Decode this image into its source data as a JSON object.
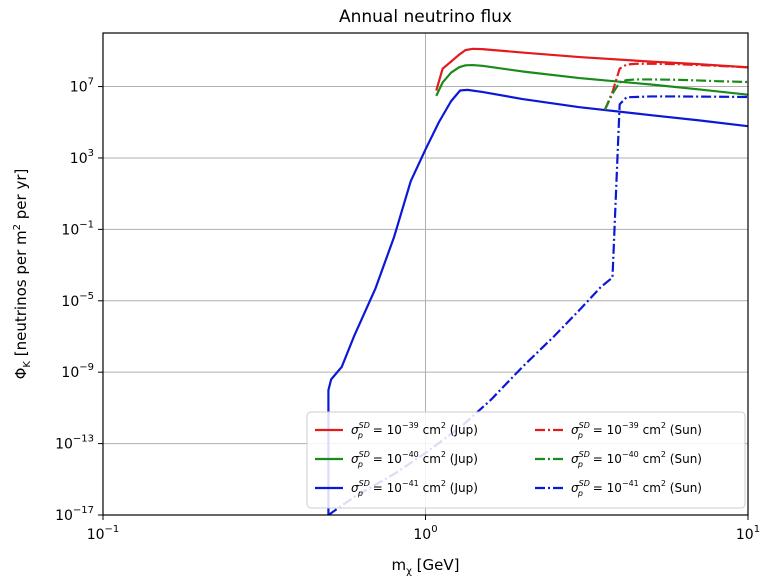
{
  "chart_data": {
    "type": "line",
    "title": "Annual neutrino flux",
    "xlabel": "m_χ [GeV]",
    "ylabel": "Φ_K [neutrinos per m² per yr]",
    "xscale": "log",
    "yscale": "log",
    "xlim": [
      0.1,
      10
    ],
    "ylim": [
      1e-17,
      10000000000.0
    ],
    "grid": true,
    "legend_position": "lower-right",
    "x_ticks": [
      {
        "base": "10",
        "exp": "−1"
      },
      {
        "base": "10",
        "exp": "0"
      },
      {
        "base": "10",
        "exp": "1"
      }
    ],
    "y_ticks": [
      {
        "base": "10",
        "exp": "7"
      },
      {
        "base": "10",
        "exp": "3"
      },
      {
        "base": "10",
        "exp": "−1"
      },
      {
        "base": "10",
        "exp": "−5"
      },
      {
        "base": "10",
        "exp": "−9"
      },
      {
        "base": "10",
        "exp": "−13"
      },
      {
        "base": "10",
        "exp": "−17"
      }
    ],
    "series": [
      {
        "name": "σ_p^SD = 10^−39 cm² (Jup)",
        "color": "#e41a1c",
        "dash": "solid",
        "x": [
          1.08,
          1.13,
          1.2,
          1.27,
          1.33,
          1.4,
          1.5,
          2,
          3,
          5,
          7,
          10
        ],
        "y": [
          6000000.0,
          100000000.0,
          250000000.0,
          600000000.0,
          1100000000.0,
          1300000000.0,
          1250000000.0,
          800000000.0,
          450000000.0,
          250000000.0,
          180000000.0,
          120000000.0
        ]
      },
      {
        "name": "σ_p^SD = 10^−40 cm² (Jup)",
        "color": "#1a8a1a",
        "dash": "solid",
        "x": [
          1.08,
          1.13,
          1.2,
          1.27,
          1.33,
          1.4,
          1.5,
          2,
          3,
          5,
          7,
          10
        ],
        "y": [
          3000000.0,
          17000000.0,
          60000000.0,
          120000000.0,
          155000000.0,
          160000000.0,
          145000000.0,
          70000000.0,
          30000000.0,
          13000000.0,
          7000000.0,
          3500000.0
        ]
      },
      {
        "name": "σ_p^SD = 10^−41 cm² (Jup)",
        "color": "#0b18d8",
        "dash": "solid",
        "x": [
          0.5,
          0.5,
          0.505,
          0.51,
          0.52,
          0.55,
          0.6,
          0.7,
          0.8,
          0.9,
          1.0,
          1.1,
          1.2,
          1.28,
          1.35,
          1.5,
          2,
          3,
          5,
          7,
          10
        ],
        "y": [
          1e-17,
          1e-10,
          2e-10,
          4e-10,
          6e-10,
          2e-09,
          1e-07,
          5e-05,
          0.04,
          50.0,
          3000.0,
          100000.0,
          1500000.0,
          6000000.0,
          6500000.0,
          5000000.0,
          2000000.0,
          700000.0,
          250000.0,
          130000.0,
          60000.0
        ]
      },
      {
        "name": "σ_p^SD = 10^−39 cm² (Sun)",
        "color": "#e41a1c",
        "dash": "dashdot",
        "x": [
          3.6,
          3.8,
          4.0,
          4.2,
          4.5,
          5,
          6,
          7,
          8,
          10
        ],
        "y": [
          500000.0,
          5000000.0,
          100000000.0,
          170000000.0,
          190000000.0,
          190000000.0,
          180000000.0,
          160000000.0,
          145000000.0,
          120000000.0
        ]
      },
      {
        "name": "σ_p^SD = 10^−40 cm² (Sun)",
        "color": "#1a8a1a",
        "dash": "dashdot",
        "x": [
          3.6,
          3.8,
          4.0,
          4.2,
          4.5,
          5,
          6,
          7,
          8,
          10
        ],
        "y": [
          500000.0,
          4000000.0,
          17000000.0,
          23000000.0,
          25000000.0,
          25000000.0,
          24000000.0,
          22000000.0,
          20000000.0,
          18000000.0
        ]
      },
      {
        "name": "σ_p^SD = 10^−41 cm² (Sun)",
        "color": "#0b18d8",
        "dash": "dashdot",
        "x": [
          0.5,
          0.6,
          0.8,
          1.0,
          1.3,
          1.6,
          2.0,
          2.5,
          3.0,
          3.5,
          3.8,
          4.0,
          4.2,
          5,
          6,
          8,
          10
        ],
        "y": [
          1e-17,
          1e-16,
          2e-15,
          3e-14,
          1e-12,
          3e-11,
          2e-09,
          1e-07,
          3e-06,
          6e-05,
          0.0002,
          1000000.0,
          2500000.0,
          2800000.0,
          2800000.0,
          2700000.0,
          2600000.0
        ]
      }
    ],
    "legend": [
      {
        "symbol": "σ",
        "sub": "p",
        "sup": "SD",
        "mid": " = 10",
        "exp": "−39",
        "unit": " cm",
        "unit_exp": "2",
        "tail": " (Jup)"
      },
      {
        "symbol": "σ",
        "sub": "p",
        "sup": "SD",
        "mid": " = 10",
        "exp": "−39",
        "unit": " cm",
        "unit_exp": "2",
        "tail": " (Sun)"
      },
      {
        "symbol": "σ",
        "sub": "p",
        "sup": "SD",
        "mid": " = 10",
        "exp": "−40",
        "unit": " cm",
        "unit_exp": "2",
        "tail": " (Jup)"
      },
      {
        "symbol": "σ",
        "sub": "p",
        "sup": "SD",
        "mid": " = 10",
        "exp": "−40",
        "unit": " cm",
        "unit_exp": "2",
        "tail": " (Sun)"
      },
      {
        "symbol": "σ",
        "sub": "p",
        "sup": "SD",
        "mid": " = 10",
        "exp": "−41",
        "unit": " cm",
        "unit_exp": "2",
        "tail": " (Jup)"
      },
      {
        "symbol": "σ",
        "sub": "p",
        "sup": "SD",
        "mid": " = 10",
        "exp": "−41",
        "unit": " cm",
        "unit_exp": "2",
        "tail": " (Sun)"
      }
    ],
    "axis_text": {
      "x_main": "m",
      "x_sub": "χ",
      "x_rest": " [GeV]",
      "y_main": "Φ",
      "y_sub": "K",
      "y_mid": " [neutrinos per m",
      "y_sup": "2",
      "y_rest": " per yr]"
    }
  }
}
